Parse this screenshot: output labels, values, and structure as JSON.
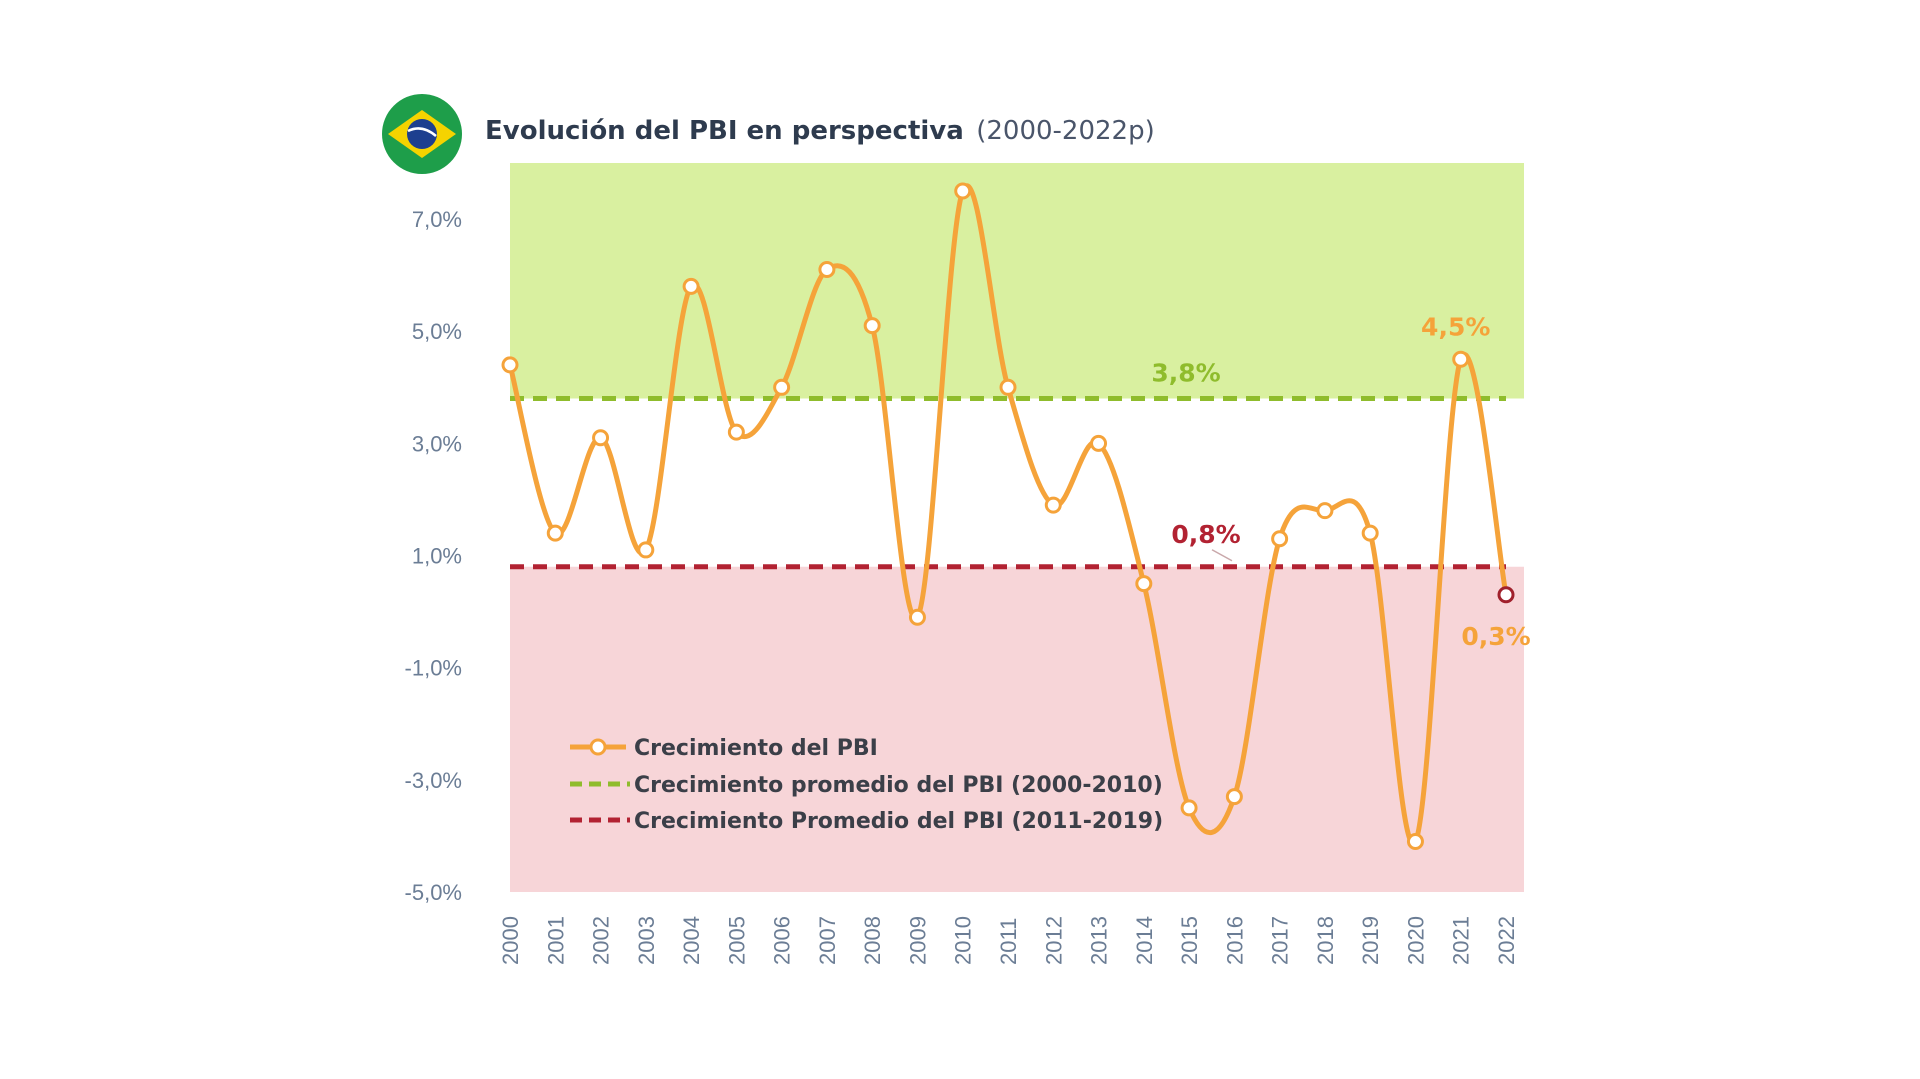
{
  "title": {
    "main": "Evolución del PBI en perspectiva",
    "sub": "(2000-2022p)"
  },
  "colors": {
    "series": "#f5a33a",
    "avg_2000_2010": "#8fbc2c",
    "avg_2011_2019": "#b22232",
    "upper_band": "#d9f0a0",
    "lower_band": "#f7d5d8",
    "axis_text": "#6b7d95",
    "last_point": "#a0202c"
  },
  "chart_data": {
    "type": "line",
    "x": [
      "2000",
      "2001",
      "2002",
      "2003",
      "2004",
      "2005",
      "2006",
      "2007",
      "2008",
      "2009",
      "2010",
      "2011",
      "2012",
      "2013",
      "2014",
      "2015",
      "2016",
      "2017",
      "2018",
      "2019",
      "2020",
      "2021",
      "2022"
    ],
    "series": [
      {
        "name": "Crecimiento del PBI",
        "values": [
          4.4,
          1.4,
          3.1,
          1.1,
          5.8,
          3.2,
          4.0,
          6.1,
          5.1,
          -0.1,
          7.5,
          4.0,
          1.9,
          3.0,
          0.5,
          -3.5,
          -3.3,
          1.3,
          1.8,
          1.4,
          -4.1,
          4.5,
          0.3
        ]
      }
    ],
    "averages": [
      {
        "name": "Crecimiento promedio del PBI (2000-2010)",
        "value": 3.8,
        "label": "3,8%"
      },
      {
        "name": "Crecimiento Promedio del PBI (2011-2019)",
        "value": 0.8,
        "label": "0,8%"
      }
    ],
    "data_labels": [
      {
        "year": "2021",
        "label": "4,5%"
      },
      {
        "year": "2022",
        "label": "0,3%"
      }
    ],
    "y_ticks": [
      "7,0%",
      "5,0%",
      "3,0%",
      "1,0%",
      "-1,0%",
      "-3,0%",
      "-5,0%"
    ],
    "y_tick_values": [
      7,
      5,
      3,
      1,
      -1,
      -3,
      -5
    ],
    "ylim": [
      -5,
      8
    ],
    "bands": [
      {
        "from": 3.8,
        "to": 8,
        "color": "upper"
      },
      {
        "from": -5,
        "to": 0.8,
        "color": "lower"
      }
    ],
    "grid": false,
    "legend_position": "bottom-left"
  }
}
